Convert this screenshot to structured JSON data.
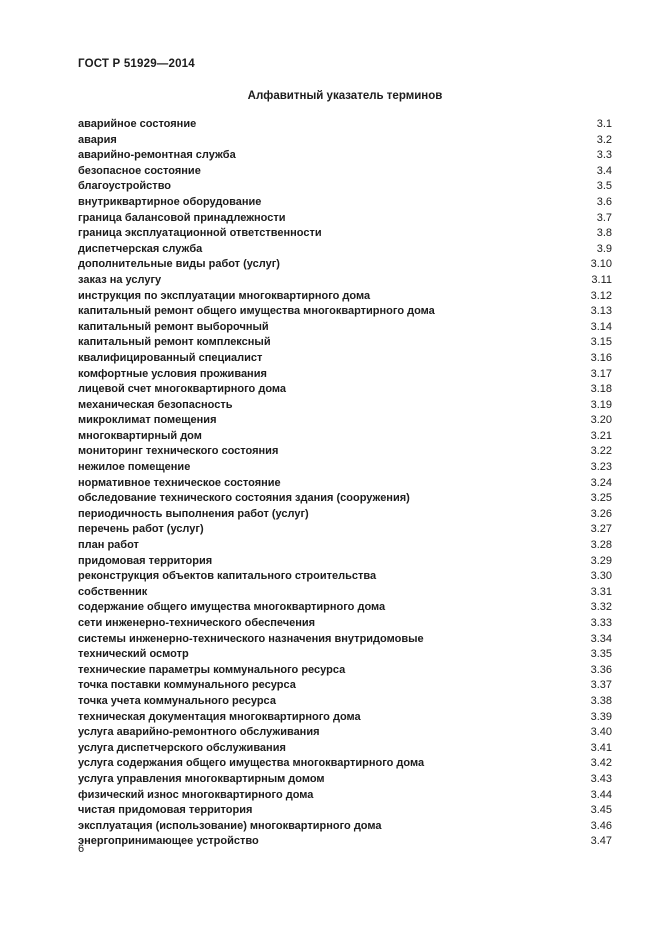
{
  "page": {
    "header": "ГОСТ Р 51929—2014",
    "title": "Алфавитный указатель терминов",
    "page_number": "6"
  },
  "index": {
    "entries": [
      {
        "term": "аварийное состояние",
        "ref": "3.1"
      },
      {
        "term": "авария",
        "ref": "3.2"
      },
      {
        "term": "аварийно-ремонтная служба",
        "ref": "3.3"
      },
      {
        "term": "безопасное состояние",
        "ref": "3.4"
      },
      {
        "term": "благоустройство",
        "ref": "3.5"
      },
      {
        "term": "внутриквартирное оборудование",
        "ref": "3.6"
      },
      {
        "term": "граница балансовой принадлежности",
        "ref": "3.7"
      },
      {
        "term": "граница эксплуатационной ответственности",
        "ref": "3.8"
      },
      {
        "term": "диспетчерская служба",
        "ref": "3.9"
      },
      {
        "term": "дополнительные виды работ (услуг)",
        "ref": "3.10"
      },
      {
        "term": "заказ на услугу",
        "ref": "3.11"
      },
      {
        "term": "инструкция по эксплуатации многоквартирного дома",
        "ref": "3.12"
      },
      {
        "term": "капитальный ремонт общего имущества многоквартирного дома",
        "ref": "3.13"
      },
      {
        "term": "капитальный ремонт выборочный",
        "ref": "3.14"
      },
      {
        "term": "капитальный ремонт комплексный",
        "ref": "3.15"
      },
      {
        "term": "квалифицированный специалист",
        "ref": "3.16"
      },
      {
        "term": "комфортные условия проживания",
        "ref": "3.17"
      },
      {
        "term": "лицевой счет многоквартирного дома",
        "ref": "3.18"
      },
      {
        "term": "механическая безопасность",
        "ref": "3.19"
      },
      {
        "term": "микроклимат помещения",
        "ref": "3.20"
      },
      {
        "term": "многоквартирный дом",
        "ref": "3.21"
      },
      {
        "term": "мониторинг технического состояния",
        "ref": "3.22"
      },
      {
        "term": "нежилое помещение",
        "ref": "3.23"
      },
      {
        "term": "нормативное техническое состояние",
        "ref": "3.24"
      },
      {
        "term": "обследование технического состояния здания (сооружения)",
        "ref": "3.25"
      },
      {
        "term": "периодичность выполнения работ (услуг)",
        "ref": "3.26"
      },
      {
        "term": "перечень работ (услуг)",
        "ref": "3.27"
      },
      {
        "term": "план работ",
        "ref": "3.28"
      },
      {
        "term": "придомовая территория",
        "ref": "3.29"
      },
      {
        "term": "реконструкция объектов капитального строительства",
        "ref": "3.30"
      },
      {
        "term": "собственник",
        "ref": "3.31"
      },
      {
        "term": "содержание общего имущества многоквартирного дома",
        "ref": "3.32"
      },
      {
        "term": "сети инженерно-технического обеспечения",
        "ref": "3.33"
      },
      {
        "term": "системы инженерно-технического назначения внутридомовые",
        "ref": "3.34"
      },
      {
        "term": "технический осмотр",
        "ref": "3.35"
      },
      {
        "term": "технические параметры коммунального ресурса",
        "ref": "3.36"
      },
      {
        "term": "точка поставки коммунального ресурса",
        "ref": "3.37"
      },
      {
        "term": "точка учета коммунального ресурса",
        "ref": "3.38"
      },
      {
        "term": "техническая документация многоквартирного дома",
        "ref": "3.39"
      },
      {
        "term": "услуга аварийно-ремонтного обслуживания",
        "ref": "3.40"
      },
      {
        "term": "услуга диспетчерского обслуживания",
        "ref": "3.41"
      },
      {
        "term": "услуга содержания общего имущества многоквартирного дома",
        "ref": "3.42"
      },
      {
        "term": "услуга управления многоквартирным домом",
        "ref": "3.43"
      },
      {
        "term": "физический износ многоквартирного дома",
        "ref": "3.44"
      },
      {
        "term": "чистая придомовая территория",
        "ref": "3.45"
      },
      {
        "term": "эксплуатация (использование) многоквартирного дома",
        "ref": "3.46"
      },
      {
        "term": "энергопринимающее устройство",
        "ref": "3.47"
      }
    ]
  }
}
